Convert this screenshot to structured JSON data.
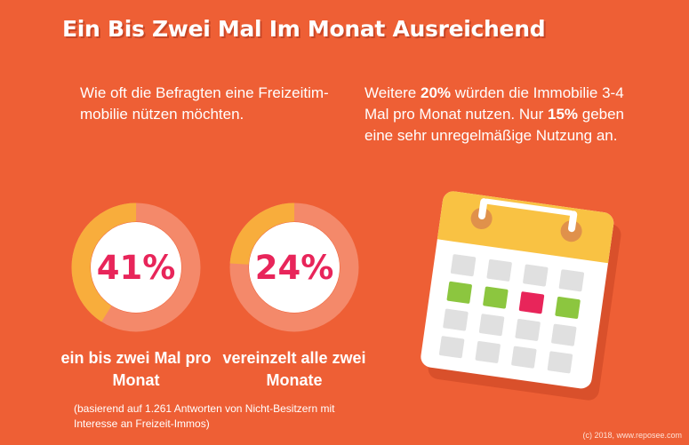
{
  "title": "Ein Bis Zwei Mal Im Monat Ausreichend",
  "intro": "Wie oft die Befragten eine Freizeitim-mobilie nützen möchten.",
  "note": {
    "part1": "Weitere ",
    "highlight1": "20%",
    "part2": " würden die Immobilie 3-4 Mal pro Monat nutzen. Nur ",
    "highlight2": "15%",
    "part3": " geben eine sehr unregelmäßige Nutzung an."
  },
  "chart_data": {
    "type": "pie",
    "series": [
      {
        "name": "ein bis zwei Mal pro Monat",
        "value_label": "41%",
        "value": 41
      },
      {
        "name": "vereinzelt alle zwei Monate",
        "value_label": "24%",
        "value": 24
      }
    ]
  },
  "captions": {
    "first": "ein bis zwei Mal pro Monat",
    "second": "vereinzelt alle zwei Monate"
  },
  "source": "(basierend auf 1.261 Antworten von Nicht-Besitzern mit Interesse an Freizeit-Immos)",
  "copyright": "(c) 2018, www.reposee.com",
  "colors": {
    "background": "#ee5f35",
    "ring_filled": "#f8ad3c",
    "ring_track": "#f4896a",
    "value_text": "#e8255a",
    "calendar_header": "#f9c243",
    "calendar_green": "#8cc63f",
    "calendar_red": "#e8255a",
    "calendar_gray": "#e0e0e0"
  },
  "icons": {
    "calendar": "calendar-icon"
  }
}
